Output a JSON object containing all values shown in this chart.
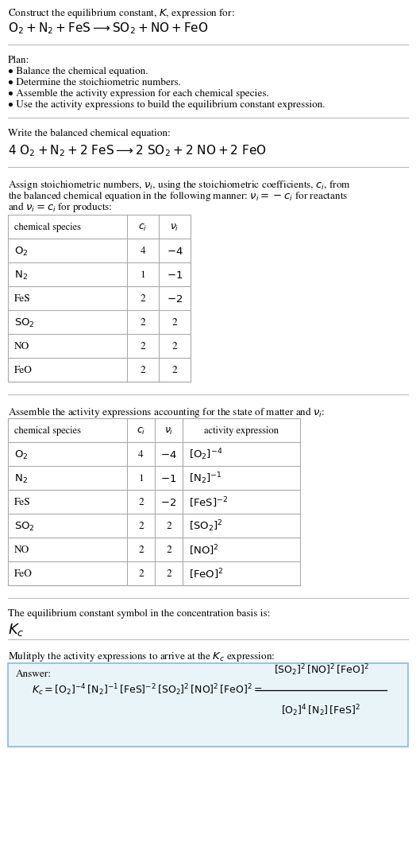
{
  "bg_color": "#ffffff",
  "text_color": "#000000",
  "divider_color": "#bbbbbb",
  "table_line_color": "#aaaaaa",
  "answer_box_color": "#e8f4f8",
  "answer_box_edge_color": "#88bbcc",
  "sections": {
    "s1_label": "Construct the equilibrium constant, $K$, expression for:",
    "s1_eq": "$\\mathrm{O_2 + N_2 + FeS} \\longrightarrow \\mathrm{SO_2 + NO + FeO}$",
    "s2_label": "Plan:",
    "s2_bullets": [
      "Balance the chemical equation.",
      "Determine the stoichiometric numbers.",
      "Assemble the activity expression for each chemical species.",
      "Use the activity expressions to build the equilibrium constant expression."
    ],
    "s3_label": "Write the balanced chemical equation:",
    "s3_eq": "$\\mathrm{4\\ O_2 + N_2 + 2\\ FeS} \\longrightarrow \\mathrm{2\\ SO_2 + 2\\ NO + 2\\ FeO}$",
    "s4_label_lines": [
      "Assign stoichiometric numbers, $\\nu_i$, using the stoichiometric coefficients, $c_i$, from",
      "the balanced chemical equation in the following manner: $\\nu_i = -c_i$ for reactants",
      "and $\\nu_i = c_i$ for products:"
    ],
    "s5_label": "Assemble the activity expressions accounting for the state of matter and $\\nu_i$:",
    "s6_label": "The equilibrium constant symbol in the concentration basis is:",
    "s6_sym": "$K_c$",
    "s7_label": "Mulitply the activity expressions to arrive at the $K_c$ expression:",
    "ans_label": "Answer:",
    "ans_eq": "$K_c = [\\mathrm{O_2}]^{-4}\\,[\\mathrm{N_2}]^{-1}\\,[\\mathrm{FeS}]^{-2}\\,[\\mathrm{SO_2}]^{2}\\,[\\mathrm{NO}]^{2}\\,[\\mathrm{FeO}]^{2} = $",
    "ans_num": "$[\\mathrm{SO_2}]^2\\,[\\mathrm{NO}]^2\\,[\\mathrm{FeO}]^2$",
    "ans_den": "$[\\mathrm{O_2}]^4\\,[\\mathrm{N_2}]\\,[\\mathrm{FeS}]^2$"
  },
  "table1_headers": [
    "chemical species",
    "$c_i$",
    "$\\nu_i$"
  ],
  "table1_rows": [
    [
      "$\\mathrm{O_2}$",
      "4",
      "$-4$"
    ],
    [
      "$\\mathrm{N_2}$",
      "1",
      "$-1$"
    ],
    [
      "FeS",
      "2",
      "$-2$"
    ],
    [
      "$\\mathrm{SO_2}$",
      "2",
      "2"
    ],
    [
      "NO",
      "2",
      "2"
    ],
    [
      "FeO",
      "2",
      "2"
    ]
  ],
  "table2_headers": [
    "chemical species",
    "$c_i$",
    "$\\nu_i$",
    "activity expression"
  ],
  "table2_rows": [
    [
      "$\\mathrm{O_2}$",
      "4",
      "$-4$",
      "$[\\mathrm{O_2}]^{-4}$"
    ],
    [
      "$\\mathrm{N_2}$",
      "1",
      "$-1$",
      "$[\\mathrm{N_2}]^{-1}$"
    ],
    [
      "FeS",
      "2",
      "$-2$",
      "$[\\mathrm{FeS}]^{-2}$"
    ],
    [
      "$\\mathrm{SO_2}$",
      "2",
      "2",
      "$[\\mathrm{SO_2}]^{2}$"
    ],
    [
      "NO",
      "2",
      "2",
      "$[\\mathrm{NO}]^{2}$"
    ],
    [
      "FeO",
      "2",
      "2",
      "$[\\mathrm{FeO}]^{2}$"
    ]
  ]
}
